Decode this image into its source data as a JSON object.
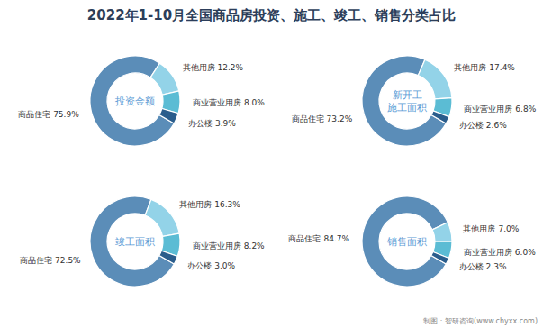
{
  "title": "2022年1-10月全国商品房投资、施工、竣工、销售分类占比",
  "annotations": [
    "制图：智研咨询(www.chyxx.com)"
  ],
  "chart_data": [
    {
      "type": "donut",
      "title": "投资金额",
      "categories": [
        "商品住宅",
        "其他用房",
        "商业营业用房",
        "办公楼"
      ],
      "values": [
        75.9,
        12.2,
        8.0,
        3.9
      ],
      "value_labels": [
        "75.9%",
        "12.2%",
        "8.0%",
        "3.9%"
      ],
      "colors": [
        "#5b8db8",
        "#93d3e8",
        "#5bbcd4",
        "#2a5d8c"
      ],
      "data_labels": true
    },
    {
      "type": "donut",
      "title": "新开工\n施工面积",
      "categories": [
        "商品住宅",
        "其他用房",
        "商业营业用房",
        "办公楼"
      ],
      "values": [
        73.2,
        17.4,
        6.8,
        2.6
      ],
      "value_labels": [
        "73.2%",
        "17.4%",
        "6.8%",
        "2.6%"
      ],
      "colors": [
        "#5b8db8",
        "#93d3e8",
        "#5bbcd4",
        "#2a5d8c"
      ],
      "data_labels": true
    },
    {
      "type": "donut",
      "title": "竣工面积",
      "categories": [
        "商品住宅",
        "其他用房",
        "商业营业用房",
        "办公楼"
      ],
      "values": [
        72.5,
        16.3,
        8.2,
        3.0
      ],
      "value_labels": [
        "72.5%",
        "16.3%",
        "8.2%",
        "3.0%"
      ],
      "colors": [
        "#5b8db8",
        "#93d3e8",
        "#5bbcd4",
        "#2a5d8c"
      ],
      "data_labels": true
    },
    {
      "type": "donut",
      "title": "销售面积",
      "categories": [
        "商品住宅",
        "其他用房",
        "商业营业用房",
        "办公楼"
      ],
      "values": [
        84.7,
        7.0,
        6.0,
        2.3
      ],
      "value_labels": [
        "84.7%",
        "7.0%",
        "6.0%",
        "2.3%"
      ],
      "colors": [
        "#5b8db8",
        "#93d3e8",
        "#5bbcd4",
        "#2a5d8c"
      ],
      "data_labels": true
    }
  ]
}
